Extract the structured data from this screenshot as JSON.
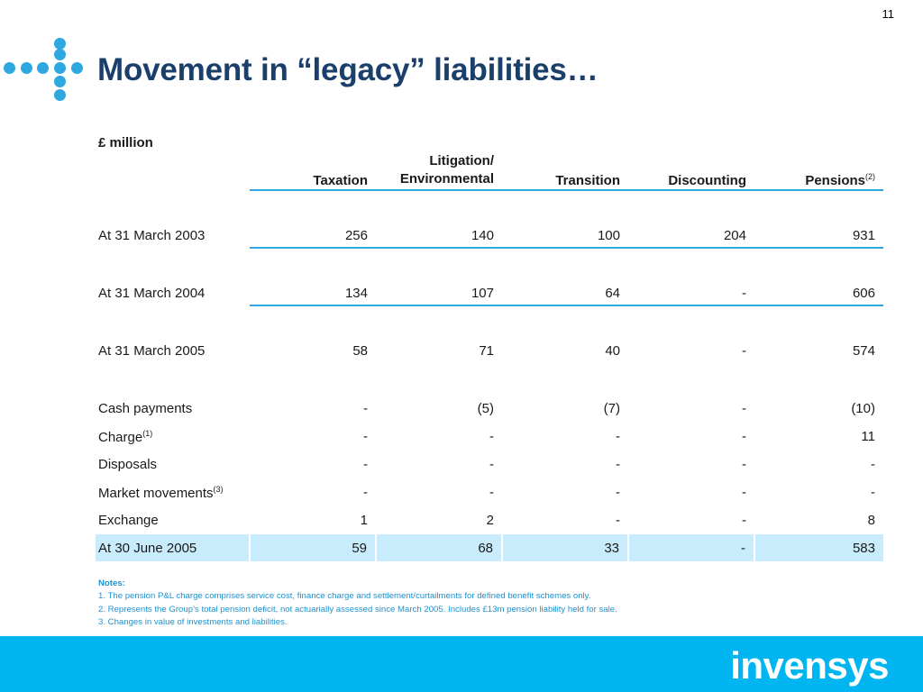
{
  "slide": {
    "page_number": "11",
    "title": "Movement in “legacy” liabilities…"
  },
  "table": {
    "unit_label": "£ million",
    "headers": {
      "taxation": "Taxation",
      "litigation": "Litigation/ Environmental",
      "transition": "Transition",
      "discounting": "Discounting",
      "pensions": "Pensions",
      "pensions_note": "(2)"
    },
    "rows": [
      {
        "label": "At 31 March 2003",
        "note": "",
        "values": [
          "256",
          "140",
          "100",
          "204",
          "931"
        ]
      },
      {
        "label": "At 31 March 2004",
        "note": "",
        "values": [
          "134",
          "107",
          "64",
          "-",
          "606"
        ]
      },
      {
        "label": "At 31 March 2005",
        "note": "",
        "values": [
          "58",
          "71",
          "40",
          "-",
          "574"
        ]
      },
      {
        "label": "Cash payments",
        "note": "",
        "values": [
          "-",
          "(5)",
          "(7)",
          "-",
          "(10)"
        ]
      },
      {
        "label": "Charge",
        "note": "(1)",
        "values": [
          "-",
          "-",
          "-",
          "-",
          "11"
        ]
      },
      {
        "label": "Disposals",
        "note": "",
        "values": [
          "-",
          "-",
          "-",
          "-",
          "-"
        ]
      },
      {
        "label": "Market movements",
        "note": "(3)",
        "values": [
          "-",
          "-",
          "-",
          "-",
          "-"
        ]
      },
      {
        "label": "Exchange",
        "note": "",
        "values": [
          "1",
          "2",
          "-",
          "-",
          "8"
        ]
      },
      {
        "label": "At 30 June 2005",
        "note": "",
        "values": [
          "59",
          "68",
          "33",
          "-",
          "583"
        ]
      }
    ]
  },
  "notes": {
    "heading": "Notes:",
    "items": [
      "1. The pension P&L charge comprises service cost, finance charge and settlement/curtailments for defined benefit schemes only.",
      "2. Represents the Group’s total pension deficit, not actuarially assessed since March 2005.  Includes £13m pension liability held for sale.",
      "3. Changes in value of investments and liabilities."
    ]
  },
  "footer": {
    "brand": "invensys"
  },
  "colors": {
    "title": "#1a3f6b",
    "accent": "#2fa8e0",
    "footer_bar": "#00b5f0",
    "highlight_row": "#c8ecfb",
    "notes_text": "#1e92d0"
  }
}
